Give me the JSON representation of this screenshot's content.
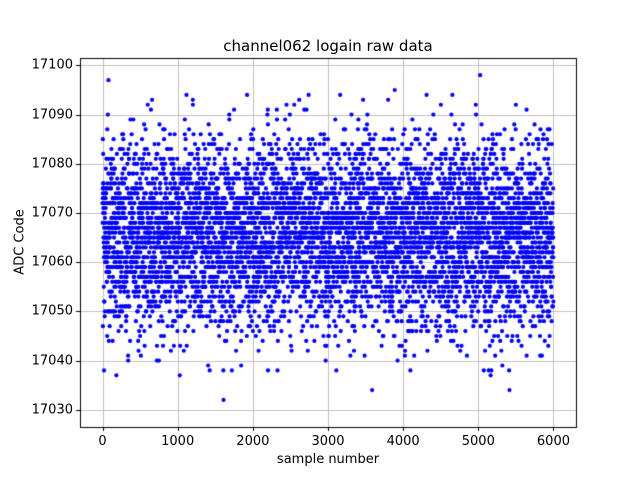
{
  "chart_data": {
    "type": "scatter",
    "title": "channel062 logain raw data",
    "xlabel": "sample number",
    "ylabel": "ADC Code",
    "x_ticks": [
      0,
      1000,
      2000,
      3000,
      4000,
      5000,
      6000
    ],
    "y_ticks": [
      17030,
      17040,
      17050,
      17060,
      17070,
      17080,
      17090,
      17100
    ],
    "xlim": [
      -300,
      6300
    ],
    "ylim": [
      17026.5,
      17101.5
    ],
    "grid": true,
    "grid_color": "#b0b0b0",
    "marker_color": "#0000ff",
    "marker_radius_px": 2.1,
    "legend": "none",
    "points": {
      "n": 6000,
      "x_start": 0,
      "x_end": 5999,
      "y_mean": 17065.5,
      "y_std": 9.5,
      "y_min": 17029,
      "y_max": 17098,
      "y_integer_codes": true,
      "seed": 42
    }
  }
}
